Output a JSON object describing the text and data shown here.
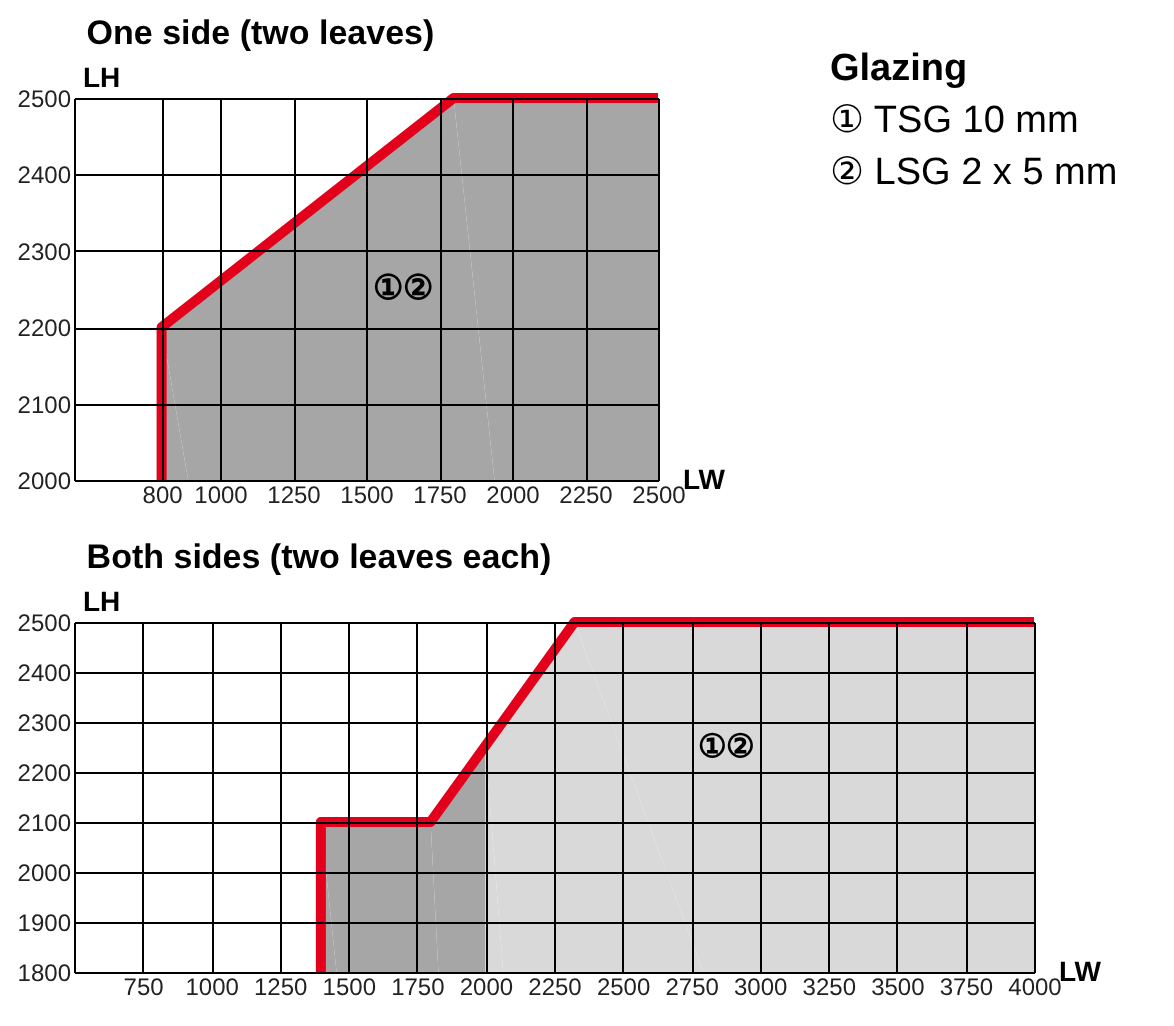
{
  "chart_data": [
    {
      "type": "area",
      "title": "One side (two leaves)",
      "xlabel": "LW",
      "ylabel": "LH",
      "series": [
        {
          "type": "area",
          "color": "#a6a6a6",
          "x": [
            800,
            1800,
            2500
          ],
          "values": [
            2200,
            2500,
            2500
          ]
        },
        {
          "type": "line",
          "color": "#e2001a",
          "x": [
            800,
            800,
            1800,
            2500
          ],
          "values": [
            2000,
            2200,
            2500,
            2500
          ]
        }
      ],
      "xlim": [
        500,
        2500
      ],
      "xticks": [
        800,
        1000,
        1250,
        1500,
        1750,
        2000,
        2250,
        2500
      ],
      "ylim": [
        2000,
        2500
      ],
      "yticks": [
        2000,
        2100,
        2200,
        2300,
        2400,
        2500
      ],
      "grid": true,
      "line_style": "solid",
      "marker": "none",
      "annotations": [
        "①②",
        "Glazing",
        "① TSG 10 mm",
        "② LSG 2 x 5 mm"
      ]
    },
    {
      "type": "area",
      "title": "Both sides (two leaves each)",
      "xlabel": "LW",
      "ylabel": "LH",
      "series": [
        {
          "type": "area",
          "color": "#a6a6a6",
          "x": [
            1400,
            1800,
            2000
          ],
          "values": [
            2100,
            2100,
            2250
          ]
        },
        {
          "type": "area",
          "color": "#d9d9d9",
          "x": [
            2000,
            2325,
            4000
          ],
          "values": [
            2250,
            2500,
            2500
          ]
        },
        {
          "type": "line",
          "color": "#e2001a",
          "x": [
            1400,
            1400,
            1800,
            2325,
            4000
          ],
          "values": [
            1800,
            2100,
            2100,
            2500,
            2500
          ]
        }
      ],
      "xlim": [
        500,
        4000
      ],
      "xticks": [
        750,
        1000,
        1250,
        1500,
        1750,
        2000,
        2250,
        2500,
        2750,
        3000,
        3250,
        3500,
        3750,
        4000
      ],
      "ylim": [
        1800,
        2500
      ],
      "yticks": [
        1800,
        1900,
        2000,
        2100,
        2200,
        2300,
        2400,
        2500
      ],
      "grid": true,
      "line_style": "solid",
      "marker": "none",
      "annotations": [
        "①②"
      ]
    }
  ]
}
